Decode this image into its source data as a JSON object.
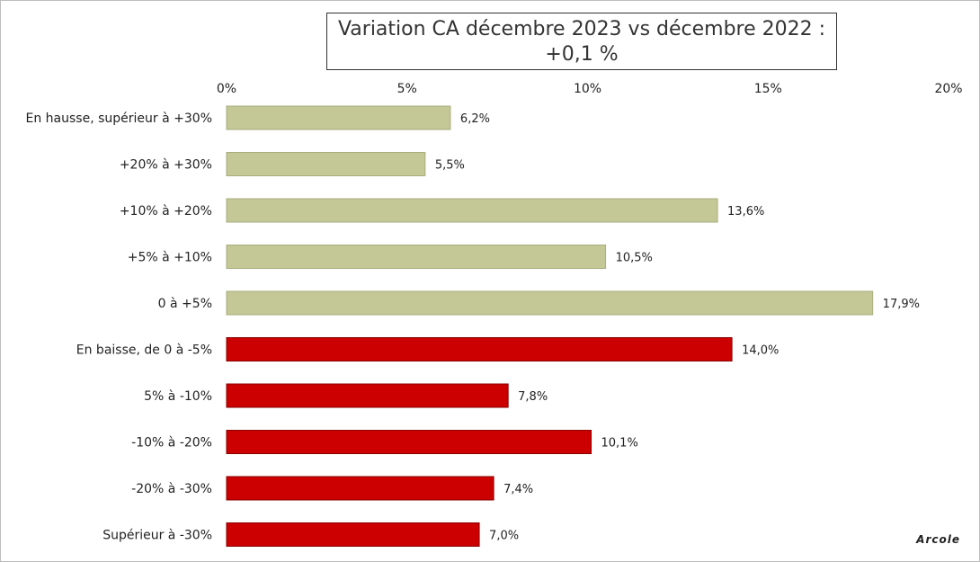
{
  "chart_data": {
    "type": "bar",
    "orientation": "horizontal",
    "title_line1": "Variation CA décembre 2023 vs décembre 2022 :",
    "title_line2": "+0,1 %",
    "xlim": [
      0,
      20
    ],
    "x_ticks": [
      {
        "value": 0,
        "label": "0%"
      },
      {
        "value": 5,
        "label": "5%"
      },
      {
        "value": 10,
        "label": "10%"
      },
      {
        "value": 15,
        "label": "15%"
      },
      {
        "value": 20,
        "label": "20%"
      }
    ],
    "axis_position": "top",
    "grid": false,
    "bars": [
      {
        "category": "En hausse, supérieur à +30%",
        "value": 6.2,
        "label": "6,2%",
        "group": "hausse"
      },
      {
        "category": "+20% à +30%",
        "value": 5.5,
        "label": "5,5%",
        "group": "hausse"
      },
      {
        "category": "+10% à +20%",
        "value": 13.6,
        "label": "13,6%",
        "group": "hausse"
      },
      {
        "category": "+5% à +10%",
        "value": 10.5,
        "label": "10,5%",
        "group": "hausse"
      },
      {
        "category": "0 à +5%",
        "value": 17.9,
        "label": "17,9%",
        "group": "hausse"
      },
      {
        "category": "En baisse, de 0 à -5%",
        "value": 14.0,
        "label": "14,0%",
        "group": "baisse"
      },
      {
        "category": "5% à -10%",
        "value": 7.8,
        "label": "7,8%",
        "group": "baisse"
      },
      {
        "category": "-10% à -20%",
        "value": 10.1,
        "label": "10,1%",
        "group": "baisse"
      },
      {
        "category": "-20% à -30%",
        "value": 7.4,
        "label": "7,4%",
        "group": "baisse"
      },
      {
        "category": "Supérieur à -30%",
        "value": 7.0,
        "label": "7,0%",
        "group": "baisse"
      }
    ],
    "colors": {
      "hausse": "#c4c896",
      "baisse": "#cc0000"
    }
  },
  "watermark": "Arcole"
}
